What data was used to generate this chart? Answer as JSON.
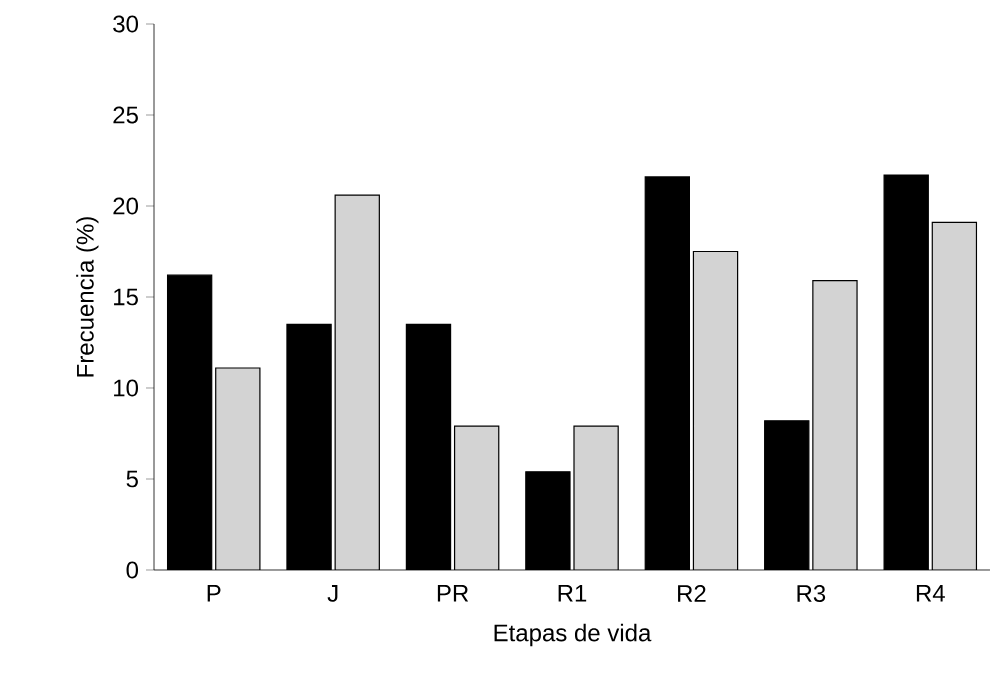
{
  "chart_data": {
    "type": "bar",
    "xlabel": "Etapas de vida",
    "ylabel": "Frecuencia  (%)",
    "categories": [
      "P",
      "J",
      "PR",
      "R1",
      "R2",
      "R3",
      "R4"
    ],
    "series": [
      {
        "color": "#000000",
        "values": [
          16.2,
          13.5,
          13.5,
          5.4,
          21.6,
          8.2,
          21.7
        ]
      },
      {
        "color": "#d3d3d3",
        "values": [
          11.1,
          20.6,
          7.9,
          7.9,
          17.5,
          15.9,
          19.1
        ]
      }
    ],
    "ylim": [
      0,
      30
    ],
    "yticks": [
      0,
      5,
      10,
      15,
      20,
      25,
      30
    ],
    "grid": false
  }
}
